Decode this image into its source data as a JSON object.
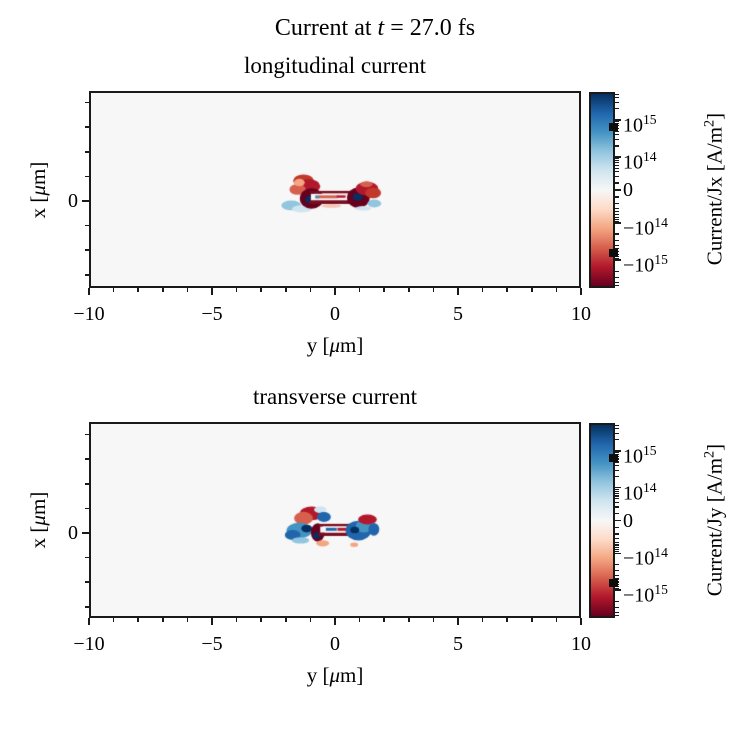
{
  "figure": {
    "suptitle": {
      "prefix": "Current at ",
      "var": "t",
      "suffix": " = 27.0 fs"
    }
  },
  "panels": [
    {
      "title": "longitudinal current",
      "xlabel": {
        "prefix": "y [",
        "mu": "μ",
        "suffix": "m]"
      },
      "ylabel": {
        "prefix": "x [",
        "mu": "μ",
        "suffix": "m]"
      },
      "xtick_labels": [
        "−10",
        "−5",
        "0",
        "5",
        "10"
      ],
      "ytick_labels": [
        "0"
      ],
      "colorbar": {
        "label": {
          "prefix": "Current/Jx [A/m",
          "sup": "2",
          "suffix": "]"
        },
        "tick_labels": [
          {
            "pre": "10",
            "sup": "15"
          },
          {
            "pre": "10",
            "sup": "14"
          },
          {
            "pre": "0",
            "sup": ""
          },
          {
            "pre": "−10",
            "sup": "14"
          },
          {
            "pre": "−10",
            "sup": "15"
          }
        ]
      }
    },
    {
      "title": "transverse current",
      "xlabel": {
        "prefix": "y [",
        "mu": "μ",
        "suffix": "m]"
      },
      "ylabel": {
        "prefix": "x [",
        "mu": "μ",
        "suffix": "m]"
      },
      "xtick_labels": [
        "−10",
        "−5",
        "0",
        "5",
        "10"
      ],
      "ytick_labels": [
        "0"
      ],
      "colorbar": {
        "label": {
          "prefix": "Current/Jy [A/m",
          "sup": "2",
          "suffix": "]"
        },
        "tick_labels": [
          {
            "pre": "10",
            "sup": "15"
          },
          {
            "pre": "10",
            "sup": "14"
          },
          {
            "pre": "0",
            "sup": ""
          },
          {
            "pre": "−10",
            "sup": "14"
          },
          {
            "pre": "−10",
            "sup": "15"
          }
        ]
      }
    }
  ],
  "chart_data": [
    {
      "type": "heatmap",
      "title": "longitudinal current",
      "xlabel": "y [um]",
      "ylabel": "x [um]",
      "xlim": [
        -10,
        10
      ],
      "ylim": [
        -3.5,
        4.5
      ],
      "x_major_ticks": [
        -10,
        -5,
        0,
        5,
        10
      ],
      "x_minor_step": 1,
      "y_major_ticks": [
        0
      ],
      "y_minor_range": [
        -3,
        4
      ],
      "colorbar_label": "Current/Jx [A/m^2]",
      "colorbar_scale": "symlog",
      "colorbar_ticks": [
        1000000000000000.0,
        100000000000000.0,
        0,
        -100000000000000.0,
        -1000000000000000.0
      ],
      "cmap": "RdBu",
      "background_value": 0,
      "features": [
        {
          "s": "e",
          "u": -1.28,
          "v": 0.82,
          "ru": 0.42,
          "rv": 0.26,
          "c": "#c0392b"
        },
        {
          "s": "e",
          "u": -1.05,
          "v": 0.6,
          "ru": 0.45,
          "rv": 0.28,
          "c": "#b2182b"
        },
        {
          "s": "e",
          "u": -1.52,
          "v": 0.47,
          "ru": 0.33,
          "rv": 0.22,
          "c": "#d6604d"
        },
        {
          "s": "e",
          "u": -1.45,
          "v": 0.75,
          "ru": 0.22,
          "rv": 0.15,
          "c": "#f4a582"
        },
        {
          "s": "e",
          "u": -1.78,
          "v": -0.18,
          "ru": 0.4,
          "rv": 0.2,
          "c": "#92c5de"
        },
        {
          "s": "e",
          "u": -1.35,
          "v": -0.32,
          "ru": 0.4,
          "rv": 0.15,
          "c": "#d1e5f0"
        },
        {
          "s": "e",
          "u": -0.95,
          "v": 0.1,
          "ru": 0.48,
          "rv": 0.42,
          "c": "#67001f"
        },
        {
          "s": "e",
          "u": -1.02,
          "v": 0.05,
          "ru": 0.2,
          "rv": 0.16,
          "c": "#053061"
        },
        {
          "s": "e",
          "u": -0.75,
          "v": 0.22,
          "ru": 0.14,
          "rv": 0.1,
          "c": "#2166ac"
        },
        {
          "s": "r",
          "u": -0.08,
          "v": 0.36,
          "ru": 0.95,
          "rv": 0.05,
          "c": "#7a0c20"
        },
        {
          "s": "r",
          "u": -0.05,
          "v": -0.04,
          "ru": 1.0,
          "rv": 0.08,
          "c": "#7a0c20"
        },
        {
          "s": "r",
          "u": -0.08,
          "v": 0.16,
          "ru": 0.9,
          "rv": 0.13,
          "c": "#f7f7f7"
        },
        {
          "s": "r",
          "u": -0.35,
          "v": 0.17,
          "ru": 0.45,
          "rv": 0.06,
          "c": "#d6604d"
        },
        {
          "s": "r",
          "u": 0.25,
          "v": 0.18,
          "ru": 0.18,
          "rv": 0.05,
          "c": "#b2182b"
        },
        {
          "s": "e",
          "u": -0.72,
          "v": 0.15,
          "ru": 0.08,
          "rv": 0.05,
          "c": "#4393c3"
        },
        {
          "s": "e",
          "u": 0.95,
          "v": 0.13,
          "ru": 0.46,
          "rv": 0.42,
          "c": "#67001f"
        },
        {
          "s": "e",
          "u": 0.92,
          "v": 0.16,
          "ru": 0.2,
          "rv": 0.16,
          "c": "#053061"
        },
        {
          "s": "e",
          "u": 1.3,
          "v": 0.5,
          "ru": 0.46,
          "rv": 0.28,
          "c": "#b2182b"
        },
        {
          "s": "e",
          "u": 1.55,
          "v": 0.33,
          "ru": 0.32,
          "rv": 0.22,
          "c": "#c0392b"
        },
        {
          "s": "e",
          "u": 1.28,
          "v": 0.68,
          "ru": 0.25,
          "rv": 0.12,
          "c": "#d6604d"
        },
        {
          "s": "e",
          "u": 1.6,
          "v": -0.1,
          "ru": 0.28,
          "rv": 0.16,
          "c": "#92c5de"
        },
        {
          "s": "e",
          "u": 1.15,
          "v": -0.3,
          "ru": 0.32,
          "rv": 0.1,
          "c": "#d1e5f0"
        },
        {
          "s": "e",
          "u": -0.15,
          "v": -0.2,
          "ru": 0.4,
          "rv": 0.07,
          "c": "#f4a582",
          "a": 0.6
        }
      ]
    },
    {
      "type": "heatmap",
      "title": "transverse current",
      "xlabel": "y [um]",
      "ylabel": "x [um]",
      "xlim": [
        -10,
        10
      ],
      "ylim": [
        -3.5,
        4.5
      ],
      "x_major_ticks": [
        -10,
        -5,
        0,
        5,
        10
      ],
      "x_minor_step": 1,
      "y_major_ticks": [
        0
      ],
      "y_minor_range": [
        -3,
        4
      ],
      "colorbar_label": "Current/Jy [A/m^2]",
      "colorbar_scale": "symlog",
      "colorbar_ticks": [
        1000000000000000.0,
        100000000000000.0,
        0,
        -100000000000000.0,
        -1000000000000000.0
      ],
      "cmap": "RdBu",
      "background_value": 0,
      "features": [
        {
          "s": "e",
          "u": -0.95,
          "v": 0.8,
          "ru": 0.48,
          "rv": 0.28,
          "c": "#b2182b"
        },
        {
          "s": "e",
          "u": -1.28,
          "v": 0.6,
          "ru": 0.38,
          "rv": 0.26,
          "c": "#d6604d"
        },
        {
          "s": "e",
          "u": -0.6,
          "v": 0.95,
          "ru": 0.25,
          "rv": 0.14,
          "c": "#d1e5f0"
        },
        {
          "s": "e",
          "u": -0.45,
          "v": 0.65,
          "ru": 0.28,
          "rv": 0.2,
          "c": "#2166ac"
        },
        {
          "s": "e",
          "u": -1.45,
          "v": 0.1,
          "ru": 0.52,
          "rv": 0.32,
          "c": "#4393c3"
        },
        {
          "s": "e",
          "u": -1.72,
          "v": -0.08,
          "ru": 0.32,
          "rv": 0.2,
          "c": "#2166ac"
        },
        {
          "s": "e",
          "u": -1.15,
          "v": 0.18,
          "ru": 0.22,
          "rv": 0.16,
          "c": "#053061"
        },
        {
          "s": "e",
          "u": -1.4,
          "v": -0.3,
          "ru": 0.35,
          "rv": 0.13,
          "c": "#92c5de"
        },
        {
          "s": "e",
          "u": -0.7,
          "v": 0.02,
          "ru": 0.28,
          "rv": 0.38,
          "c": "#67001f"
        },
        {
          "s": "e",
          "u": -0.73,
          "v": -0.1,
          "ru": 0.15,
          "rv": 0.13,
          "c": "#053061"
        },
        {
          "s": "r",
          "u": 0.2,
          "v": 0.32,
          "ru": 0.85,
          "rv": 0.05,
          "c": "#7a0c20"
        },
        {
          "s": "r",
          "u": 0.22,
          "v": -0.05,
          "ru": 0.9,
          "rv": 0.07,
          "c": "#7a0c20"
        },
        {
          "s": "r",
          "u": 0.2,
          "v": 0.14,
          "ru": 0.8,
          "rv": 0.12,
          "c": "#f7f7f7"
        },
        {
          "s": "r",
          "u": -0.15,
          "v": 0.15,
          "ru": 0.22,
          "rv": 0.06,
          "c": "#2166ac"
        },
        {
          "s": "r",
          "u": 0.28,
          "v": 0.15,
          "ru": 0.18,
          "rv": 0.06,
          "c": "#b2182b"
        },
        {
          "s": "r",
          "u": 0.62,
          "v": 0.14,
          "ru": 0.14,
          "rv": 0.05,
          "c": "#4393c3"
        },
        {
          "s": "e",
          "u": 0.95,
          "v": 0.1,
          "ru": 0.52,
          "rv": 0.4,
          "c": "#2166ac"
        },
        {
          "s": "e",
          "u": 1.18,
          "v": 0.28,
          "ru": 0.33,
          "rv": 0.26,
          "c": "#4393c3"
        },
        {
          "s": "e",
          "u": 0.8,
          "v": 0.12,
          "ru": 0.18,
          "rv": 0.13,
          "c": "#053061"
        },
        {
          "s": "e",
          "u": 1.32,
          "v": 0.55,
          "ru": 0.38,
          "rv": 0.2,
          "c": "#b2182b"
        },
        {
          "s": "e",
          "u": 1.58,
          "v": 0.15,
          "ru": 0.22,
          "rv": 0.26,
          "c": "#2166ac"
        },
        {
          "s": "e",
          "u": -0.5,
          "v": -0.42,
          "ru": 0.26,
          "rv": 0.13,
          "c": "#f4a582"
        },
        {
          "s": "e",
          "u": 0.78,
          "v": -0.48,
          "ru": 0.16,
          "rv": 0.09,
          "c": "#f4a582"
        }
      ]
    }
  ]
}
